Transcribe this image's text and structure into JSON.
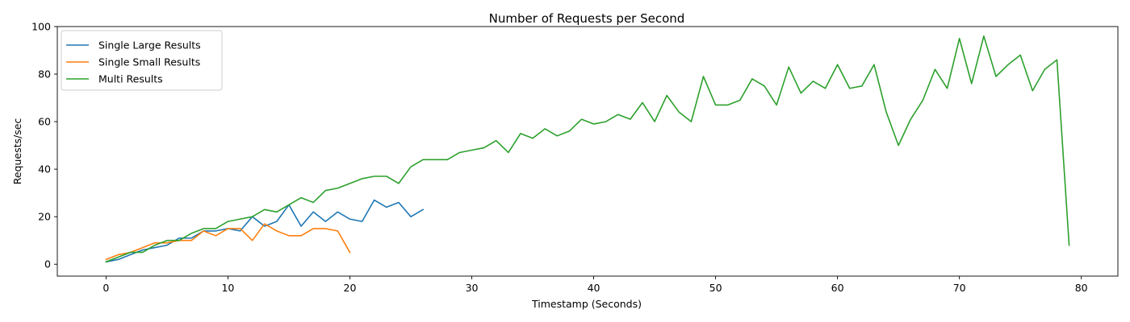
{
  "chart_data": {
    "type": "line",
    "title": "Number of Requests per Second",
    "xlabel": "Timestamp (Seconds)",
    "ylabel": "Requests/sec",
    "xlim": [
      -4,
      83
    ],
    "ylim": [
      -5,
      100
    ],
    "xticks": [
      0,
      10,
      20,
      30,
      40,
      50,
      60,
      70,
      80
    ],
    "yticks": [
      0,
      20,
      40,
      60,
      80,
      100
    ],
    "grid": false,
    "legend_position": "top-left",
    "series": [
      {
        "name": "Single Large Results",
        "color": "#1f77b4",
        "x": [
          0,
          1,
          2,
          3,
          4,
          5,
          6,
          7,
          8,
          9,
          10,
          11,
          12,
          13,
          14,
          15,
          16,
          17,
          18,
          19,
          20,
          21,
          22,
          23,
          24,
          25,
          26
        ],
        "y": [
          1,
          2,
          4,
          6,
          7,
          8,
          11,
          11,
          14,
          14,
          15,
          14,
          20,
          16,
          18,
          25,
          16,
          22,
          18,
          22,
          19,
          18,
          27,
          24,
          26,
          20,
          23
        ]
      },
      {
        "name": "Single Small Results",
        "color": "#ff7f0e",
        "x": [
          0,
          1,
          2,
          3,
          4,
          5,
          6,
          7,
          8,
          9,
          10,
          11,
          12,
          13,
          14,
          15,
          16,
          17,
          18,
          19,
          20
        ],
        "y": [
          2,
          4,
          5,
          7,
          9,
          9,
          10,
          10,
          14,
          12,
          15,
          15,
          10,
          17,
          14,
          12,
          12,
          15,
          15,
          14,
          5
        ]
      },
      {
        "name": "Multi Results",
        "color": "#2ca02c",
        "x": [
          0,
          1,
          2,
          3,
          4,
          5,
          6,
          7,
          8,
          9,
          10,
          11,
          12,
          13,
          14,
          15,
          16,
          17,
          18,
          19,
          20,
          21,
          22,
          23,
          24,
          25,
          26,
          27,
          28,
          29,
          30,
          31,
          32,
          33,
          34,
          35,
          36,
          37,
          38,
          39,
          40,
          41,
          42,
          43,
          44,
          45,
          46,
          47,
          48,
          49,
          50,
          51,
          52,
          53,
          54,
          55,
          56,
          57,
          58,
          59,
          60,
          61,
          62,
          63,
          64,
          65,
          66,
          67,
          68,
          69,
          70,
          71,
          72,
          73,
          74,
          75,
          76,
          77,
          78,
          79
        ],
        "y": [
          1,
          3,
          5,
          5,
          8,
          10,
          10,
          13,
          15,
          15,
          18,
          19,
          20,
          23,
          22,
          25,
          28,
          26,
          31,
          32,
          34,
          36,
          37,
          37,
          34,
          41,
          44,
          44,
          44,
          47,
          48,
          49,
          52,
          47,
          55,
          53,
          57,
          54,
          56,
          61,
          59,
          60,
          63,
          61,
          68,
          60,
          71,
          64,
          60,
          79,
          67,
          67,
          69,
          78,
          75,
          67,
          83,
          72,
          77,
          74,
          84,
          74,
          75,
          84,
          64,
          50,
          61,
          69,
          82,
          74,
          95,
          76,
          96,
          79,
          84,
          88,
          73,
          82,
          86,
          8
        ]
      }
    ]
  }
}
